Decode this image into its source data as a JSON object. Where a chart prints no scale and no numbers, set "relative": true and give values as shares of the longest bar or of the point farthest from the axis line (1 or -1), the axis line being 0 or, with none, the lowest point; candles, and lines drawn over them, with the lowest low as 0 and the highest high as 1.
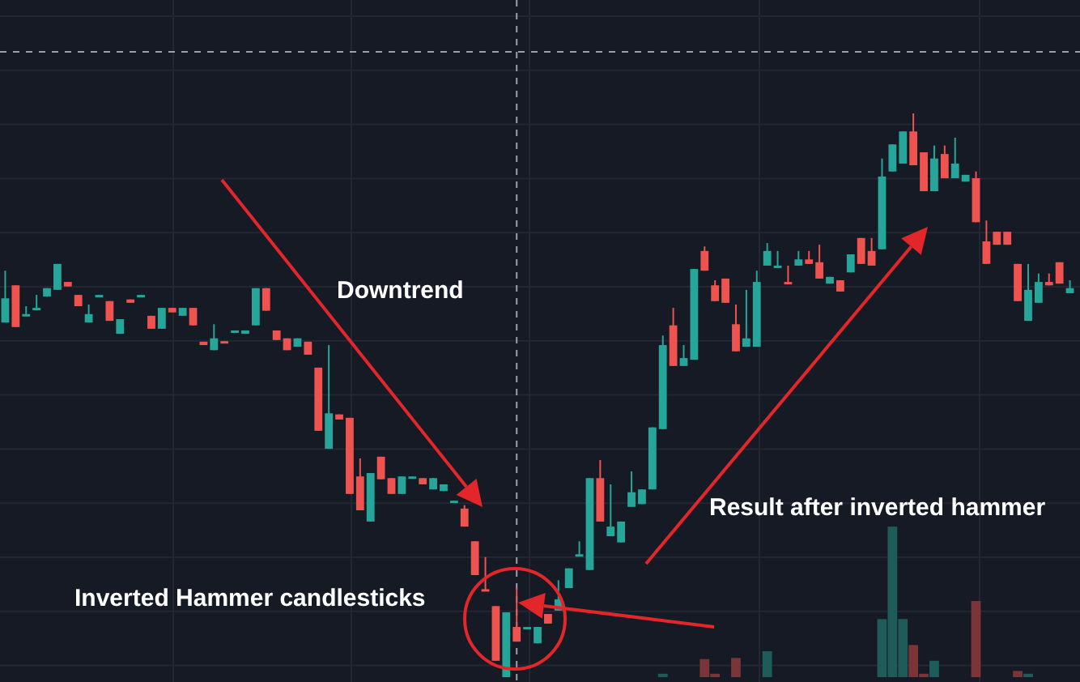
{
  "chart_data": {
    "type": "candlestick",
    "relative": true,
    "grid": true,
    "annotations": [
      "Downtrend",
      "Inverted Hammer candlesticks",
      "Result after inverted hammer"
    ],
    "categories": [
      null,
      null,
      null,
      null,
      null,
      null,
      null,
      null,
      null,
      null,
      null,
      null,
      null,
      null,
      null,
      null,
      null,
      null,
      null,
      null,
      null,
      null,
      null,
      null,
      null,
      null,
      null,
      null,
      null,
      null,
      null,
      null,
      null,
      null,
      null,
      null,
      null,
      null,
      null,
      null,
      null,
      null,
      null,
      null,
      null,
      null,
      null,
      null,
      null,
      null,
      null,
      null,
      null,
      null,
      null,
      null,
      null,
      null,
      null,
      null,
      null,
      null,
      null,
      null,
      null,
      null,
      null,
      null,
      null,
      null,
      null,
      null,
      null,
      null,
      null,
      null,
      null,
      null,
      null,
      null,
      null,
      null,
      null,
      null,
      null,
      null,
      null,
      null,
      null,
      null,
      null,
      null,
      null,
      null,
      null,
      null,
      null,
      null,
      null,
      null,
      null,
      null,
      null
    ],
    "ohlc": [
      [
        0.629,
        0.721,
        0.629,
        0.672
      ],
      [
        0.695,
        0.695,
        0.621,
        0.621
      ],
      [
        0.641,
        0.658,
        0.641,
        0.644
      ],
      [
        0.654,
        0.678,
        0.654,
        0.655
      ],
      [
        0.675,
        0.69,
        0.675,
        0.69
      ],
      [
        0.687,
        0.733,
        0.687,
        0.733
      ],
      [
        0.701,
        0.701,
        0.693,
        0.693
      ],
      [
        0.678,
        0.678,
        0.658,
        0.658
      ],
      [
        0.629,
        0.661,
        0.629,
        0.644
      ],
      [
        0.677,
        0.678,
        0.677,
        0.678
      ],
      [
        0.667,
        0.667,
        0.632,
        0.632
      ],
      [
        0.609,
        0.635,
        0.609,
        0.635
      ],
      [
        0.67,
        0.67,
        0.664,
        0.664
      ],
      [
        0.677,
        0.678,
        0.677,
        0.678
      ],
      [
        0.641,
        0.641,
        0.618,
        0.618
      ],
      [
        0.618,
        0.655,
        0.618,
        0.655
      ],
      [
        0.655,
        0.655,
        0.647,
        0.647
      ],
      [
        0.641,
        0.655,
        0.641,
        0.655
      ],
      [
        0.655,
        0.655,
        0.624,
        0.624
      ],
      [
        0.595,
        0.595,
        0.589,
        0.589
      ],
      [
        0.58,
        0.626,
        0.58,
        0.601
      ],
      [
        0.596,
        0.596,
        0.595,
        0.595
      ],
      [
        0.614,
        0.615,
        0.614,
        0.615
      ],
      [
        0.609,
        0.615,
        0.609,
        0.615
      ],
      [
        0.624,
        0.69,
        0.624,
        0.69
      ],
      [
        0.69,
        0.69,
        0.65,
        0.65
      ],
      [
        0.615,
        0.615,
        0.598,
        0.598
      ],
      [
        0.601,
        0.601,
        0.58,
        0.58
      ],
      [
        0.586,
        0.601,
        0.586,
        0.601
      ],
      [
        0.595,
        0.595,
        0.572,
        0.572
      ],
      [
        0.549,
        0.549,
        0.437,
        0.437
      ],
      [
        0.405,
        0.589,
        0.405,
        0.468
      ],
      [
        0.466,
        0.466,
        0.457,
        0.457
      ],
      [
        0.46,
        0.46,
        0.325,
        0.325
      ],
      [
        0.356,
        0.388,
        0.296,
        0.296
      ],
      [
        0.276,
        0.362,
        0.276,
        0.362
      ],
      [
        0.391,
        0.391,
        0.351,
        0.351
      ],
      [
        0.353,
        0.353,
        0.325,
        0.325
      ],
      [
        0.325,
        0.356,
        0.325,
        0.356
      ],
      [
        0.355,
        0.356,
        0.355,
        0.356
      ],
      [
        0.353,
        0.353,
        0.342,
        0.342
      ],
      [
        0.333,
        0.353,
        0.333,
        0.353
      ],
      [
        0.33,
        0.342,
        0.33,
        0.342
      ],
      [
        0.312,
        0.313,
        0.312,
        0.313
      ],
      [
        0.299,
        0.305,
        0.267,
        0.267
      ],
      [
        0.241,
        0.241,
        0.181,
        0.181
      ],
      [
        0.156,
        0.213,
        0.155,
        0.155
      ],
      [
        0.126,
        0.126,
        0.029,
        0.029
      ],
      [
        0,
        0.115,
        0,
        0.115
      ],
      [
        0.089,
        0.158,
        0.063,
        0.063
      ],
      [
        0.088,
        0.089,
        0.088,
        0.089
      ],
      [
        0.06,
        0.089,
        0.06,
        0.089
      ],
      [
        0.112,
        0.112,
        0.095,
        0.095
      ],
      [
        0.118,
        0.172,
        0.118,
        0.138
      ],
      [
        0.158,
        0.193,
        0.158,
        0.193
      ],
      [
        0.217,
        0.241,
        0.217,
        0.218
      ],
      [
        0.19,
        0.353,
        0.19,
        0.353
      ],
      [
        0.353,
        0.385,
        0.276,
        0.276
      ],
      [
        0.25,
        0.342,
        0.25,
        0.267
      ],
      [
        0.239,
        0.276,
        0.239,
        0.276
      ],
      [
        0.302,
        0.365,
        0.302,
        0.328
      ],
      [
        0.307,
        0.333,
        0.307,
        0.333
      ],
      [
        0.333,
        0.443,
        0.333,
        0.443
      ],
      [
        0.44,
        0.606,
        0.44,
        0.589
      ],
      [
        0.624,
        0.655,
        0.552,
        0.552
      ],
      [
        0.552,
        0.589,
        0.552,
        0.566
      ],
      [
        0.563,
        0.724,
        0.563,
        0.724
      ],
      [
        0.756,
        0.764,
        0.721,
        0.721
      ],
      [
        0.695,
        0.704,
        0.667,
        0.667
      ],
      [
        0.707,
        0.707,
        0.664,
        0.664
      ],
      [
        0.626,
        0.661,
        0.578,
        0.578
      ],
      [
        0.586,
        0.687,
        0.586,
        0.601
      ],
      [
        0.586,
        0.721,
        0.586,
        0.701
      ],
      [
        0.73,
        0.77,
        0.73,
        0.756
      ],
      [
        0.729,
        0.756,
        0.729,
        0.73
      ],
      [
        0.701,
        0.73,
        0.7,
        0.7
      ],
      [
        0.73,
        0.756,
        0.73,
        0.741
      ],
      [
        0.741,
        0.756,
        0.733,
        0.733
      ],
      [
        0.736,
        0.767,
        0.707,
        0.707
      ],
      [
        0.698,
        0.71,
        0.698,
        0.71
      ],
      [
        0.704,
        0.704,
        0.684,
        0.684
      ],
      [
        0.718,
        0.75,
        0.718,
        0.75
      ],
      [
        0.779,
        0.779,
        0.733,
        0.733
      ],
      [
        0.756,
        0.779,
        0.73,
        0.73
      ],
      [
        0.759,
        0.92,
        0.759,
        0.888
      ],
      [
        0.897,
        0.945,
        0.897,
        0.945
      ],
      [
        0.911,
        0.968,
        0.911,
        0.968
      ],
      [
        0.968,
        1,
        0.908,
        0.908
      ],
      [
        0.931,
        0.931,
        0.862,
        0.862
      ],
      [
        0.862,
        0.943,
        0.862,
        0.92
      ],
      [
        0.928,
        0.943,
        0.885,
        0.885
      ],
      [
        0.885,
        0.957,
        0.885,
        0.911
      ],
      [
        0.879,
        0.891,
        0.879,
        0.891
      ],
      [
        0.885,
        0.897,
        0.807,
        0.807
      ],
      [
        0.773,
        0.81,
        0.733,
        0.733
      ],
      [
        0.79,
        0.79,
        0.767,
        0.767
      ],
      [
        0.79,
        0.79,
        0.767,
        0.767
      ],
      [
        0.733,
        0.733,
        0.667,
        0.667
      ],
      [
        0.632,
        0.733,
        0.632,
        0.687
      ],
      [
        0.664,
        0.716,
        0.664,
        0.701
      ],
      [
        0.701,
        0.716,
        0.695,
        0.695
      ],
      [
        0.736,
        0.736,
        0.698,
        0.698
      ],
      [
        0.681,
        0.704,
        0.681,
        0.69
      ]
    ],
    "colors": [
      "#26a69a",
      "#ef5350",
      "#26a69a",
      "#26a69a",
      "#26a69a",
      "#26a69a",
      "#ef5350",
      "#ef5350",
      "#26a69a",
      "#26a69a",
      "#ef5350",
      "#26a69a",
      "#ef5350",
      "#26a69a",
      "#ef5350",
      "#26a69a",
      "#ef5350",
      "#26a69a",
      "#ef5350",
      "#ef5350",
      "#26a69a",
      "#ef5350",
      "#26a69a",
      "#26a69a",
      "#26a69a",
      "#ef5350",
      "#ef5350",
      "#ef5350",
      "#26a69a",
      "#ef5350",
      "#ef5350",
      "#26a69a",
      "#ef5350",
      "#ef5350",
      "#ef5350",
      "#26a69a",
      "#ef5350",
      "#ef5350",
      "#26a69a",
      "#26a69a",
      "#ef5350",
      "#26a69a",
      "#26a69a",
      "#26a69a",
      "#ef5350",
      "#ef5350",
      "#ef5350",
      "#ef5350",
      "#26a69a",
      "#ef5350",
      "#26a69a",
      "#26a69a",
      "#ef5350",
      "#26a69a",
      "#26a69a",
      "#26a69a",
      "#26a69a",
      "#ef5350",
      "#26a69a",
      "#26a69a",
      "#26a69a",
      "#26a69a",
      "#26a69a",
      "#26a69a",
      "#ef5350",
      "#26a69a",
      "#26a69a",
      "#ef5350",
      "#ef5350",
      "#ef5350",
      "#ef5350",
      "#26a69a",
      "#26a69a",
      "#26a69a",
      "#26a69a",
      "#ef5350",
      "#26a69a",
      "#ef5350",
      "#ef5350",
      "#26a69a",
      "#ef5350",
      "#26a69a",
      "#ef5350",
      "#ef5350",
      "#26a69a",
      "#26a69a",
      "#26a69a",
      "#ef5350",
      "#ef5350",
      "#26a69a",
      "#ef5350",
      "#26a69a",
      "#26a69a",
      "#ef5350",
      "#ef5350",
      "#ef5350",
      "#ef5350",
      "#ef5350",
      "#26a69a",
      "#26a69a",
      "#ef5350",
      "#ef5350",
      "#26a69a"
    ],
    "series": [
      {
        "type": "bar",
        "values": [
          null,
          null,
          null,
          null,
          null,
          null,
          null,
          null,
          null,
          null,
          null,
          null,
          null,
          null,
          null,
          null,
          null,
          null,
          null,
          null,
          null,
          null,
          null,
          null,
          null,
          null,
          null,
          null,
          null,
          null,
          null,
          null,
          null,
          null,
          null,
          null,
          null,
          null,
          null,
          null,
          null,
          null,
          null,
          null,
          null,
          null,
          null,
          null,
          null,
          null,
          null,
          null,
          null,
          null,
          null,
          null,
          null,
          null,
          null,
          null,
          null,
          null,
          null,
          0.006,
          null,
          null,
          null,
          0.032,
          0.006,
          null,
          0.034,
          null,
          null,
          0.046,
          null,
          null,
          null,
          null,
          null,
          null,
          null,
          null,
          null,
          null,
          0.103,
          0.267,
          0.103,
          0.057,
          0.006,
          0.029,
          null,
          null,
          null,
          0.135,
          null,
          null,
          null,
          0.011,
          0.006,
          null,
          null,
          null,
          null
        ],
        "colors": [
          null,
          null,
          null,
          null,
          null,
          null,
          null,
          null,
          null,
          null,
          null,
          null,
          null,
          null,
          null,
          null,
          null,
          null,
          null,
          null,
          null,
          null,
          null,
          null,
          null,
          null,
          null,
          null,
          null,
          null,
          null,
          null,
          null,
          null,
          null,
          null,
          null,
          null,
          null,
          null,
          null,
          null,
          null,
          null,
          null,
          null,
          null,
          null,
          null,
          null,
          null,
          null,
          null,
          null,
          null,
          null,
          null,
          null,
          null,
          null,
          null,
          null,
          null,
          "#1f5c59",
          null,
          null,
          null,
          "#7a3539",
          "#7a3539",
          null,
          "#7a3539",
          null,
          null,
          "#1f5c59",
          null,
          null,
          null,
          null,
          null,
          null,
          null,
          null,
          null,
          null,
          "#1f5c59",
          "#1f5c59",
          "#1f5c59",
          "#7a3539",
          "#7a3539",
          "#1f5c59",
          null,
          null,
          null,
          "#7a3539",
          null,
          null,
          null,
          "#7a3539",
          "#1f5c59",
          null,
          null,
          null,
          null
        ]
      }
    ]
  }
}
